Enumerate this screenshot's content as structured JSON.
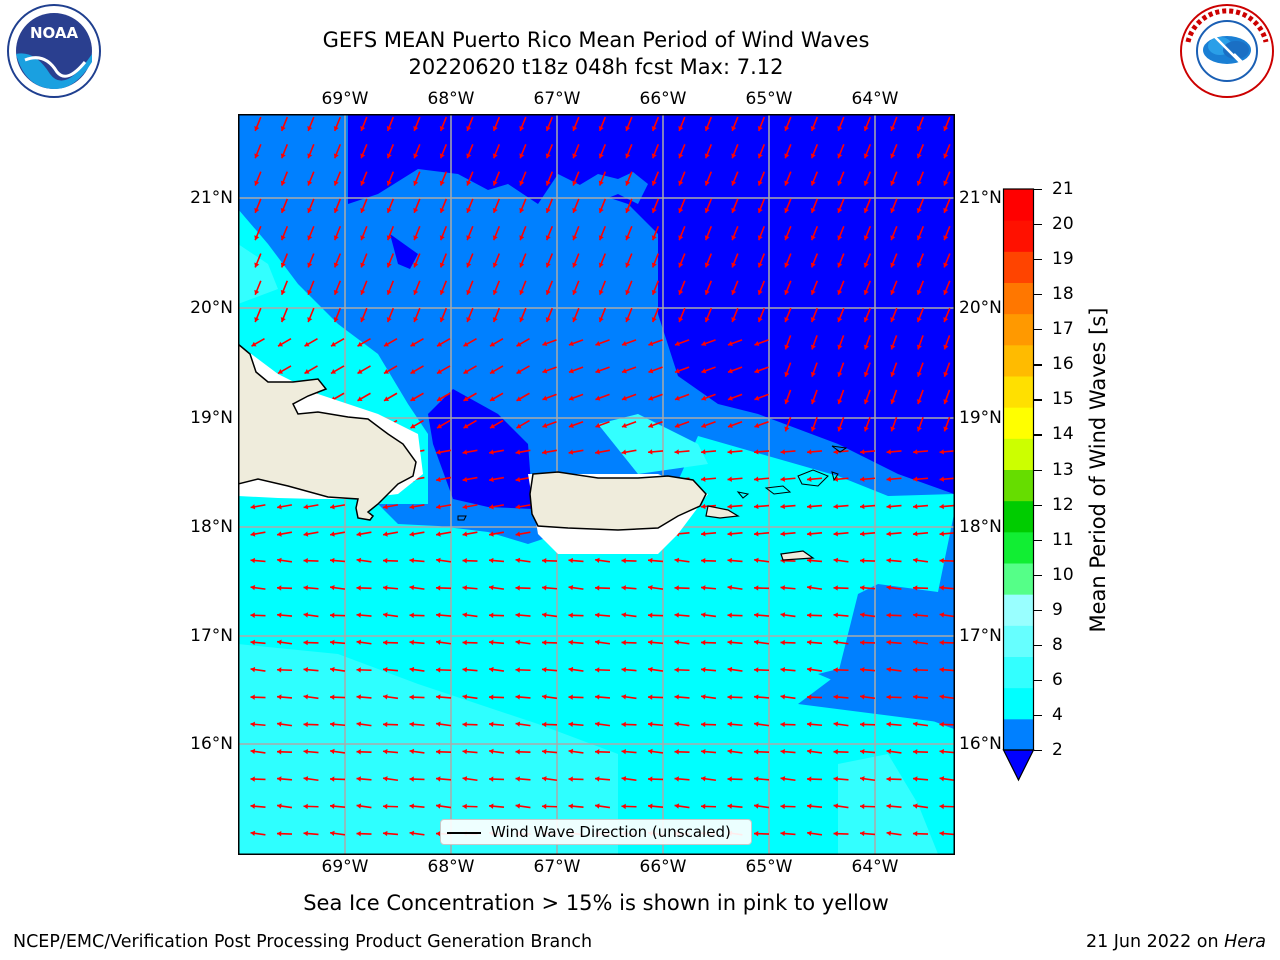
{
  "title": {
    "line1": "GEFS MEAN Puerto Rico Mean Period of Wind Waves",
    "line2": "20220620 t18z 048h fcst   Max: 7.12"
  },
  "map": {
    "lon_labels": [
      "69°W",
      "68°W",
      "67°W",
      "66°W",
      "65°W",
      "64°W"
    ],
    "lat_labels": [
      "21°N",
      "20°N",
      "19°N",
      "18°N",
      "17°N",
      "16°N"
    ],
    "land_color": "#efecdc",
    "arrow_color": "#ff0000",
    "legend_label": "Wind Wave Direction (unscaled)"
  },
  "colorbar": {
    "label": "Mean Period of Wind Waves [s]",
    "ticks": [
      "21",
      "20",
      "19",
      "18",
      "17",
      "16",
      "15",
      "14",
      "13",
      "12",
      "11",
      "10",
      "9",
      "8",
      "6",
      "4",
      "2"
    ],
    "colors": [
      "#0000ff",
      "#0080ff",
      "#00ffff",
      "#33ffff",
      "#66ffff",
      "#99ffff",
      "#55ff88",
      "#11ee33",
      "#00cc00",
      "#66dd00",
      "#ccff00",
      "#ffff00",
      "#ffe000",
      "#ffbb00",
      "#ff9900",
      "#ff7700",
      "#ff4400",
      "#ff1100",
      "#ff0000"
    ]
  },
  "logos": {
    "noaa_text": "NOAA",
    "nws_text": "NATIONAL WEATHER SERVICE"
  },
  "subtitle": "Sea Ice Concentration > 15% is shown in pink to yellow",
  "credit": "NCEP/EMC/Verification Post Processing Product Generation Branch",
  "stamp": {
    "date": "21 Jun 2022 on ",
    "host": "Hera"
  }
}
